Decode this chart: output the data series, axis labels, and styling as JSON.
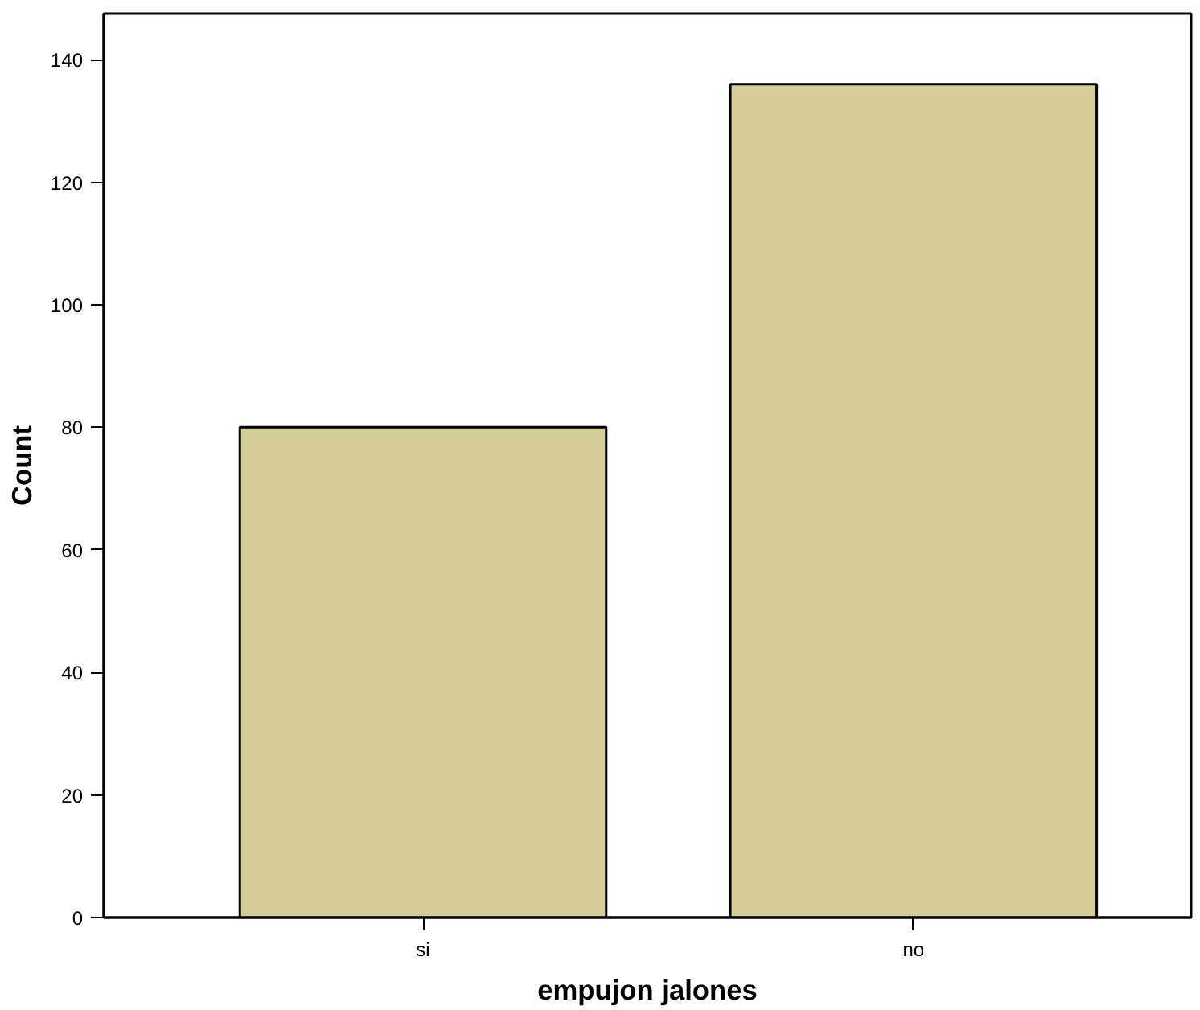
{
  "chart_data": {
    "type": "bar",
    "xlabel": "empujon jalones",
    "ylabel": "Count",
    "categories": [
      "si",
      "no"
    ],
    "values": [
      80,
      136
    ],
    "color": "#d3ce98",
    "ylim": [
      0,
      147.5
    ],
    "yticks": [
      0,
      20,
      40,
      60,
      80,
      100,
      120,
      140
    ],
    "grid": false
  }
}
